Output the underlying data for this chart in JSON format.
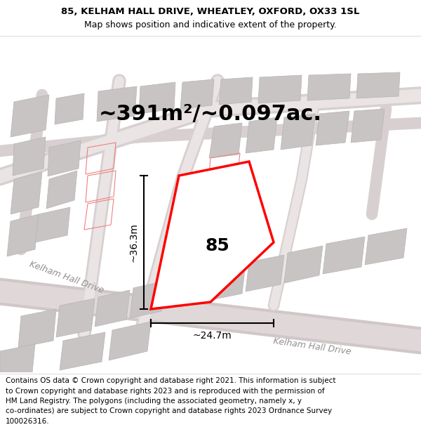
{
  "title_line1": "85, KELHAM HALL DRIVE, WHEATLEY, OXFORD, OX33 1SL",
  "title_line2": "Map shows position and indicative extent of the property.",
  "area_text": "~391m²/~0.097ac.",
  "label_85": "85",
  "dim_vertical": "~36.3m",
  "dim_horizontal": "~24.7m",
  "road_label1": "Kelham Hall Drive",
  "road_label2": "Kelham Hall Drive",
  "footer_lines": [
    "Contains OS data © Crown copyright and database right 2021. This information is subject",
    "to Crown copyright and database rights 2023 and is reproduced with the permission of",
    "HM Land Registry. The polygons (including the associated geometry, namely x, y",
    "co-ordinates) are subject to Crown copyright and database rights 2023 Ordnance Survey",
    "100026316."
  ],
  "bg_color": "#f2f0f0",
  "property_outline": "#ff0000",
  "title_fontsize": 9,
  "area_fontsize": 22,
  "label_fontsize": 18,
  "footer_fontsize": 7.5
}
